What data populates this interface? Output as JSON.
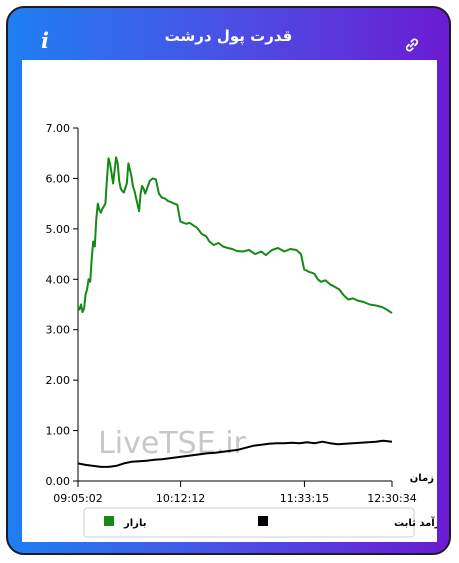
{
  "header": {
    "title": "قدرت پول درشت",
    "info_icon": "info-icon",
    "link_icon": "link-icon"
  },
  "chart_data": {
    "type": "line",
    "x_unit": "time",
    "xlabel": "زمان",
    "ylabel": "",
    "ylim": [
      0,
      7
    ],
    "yticks": [
      "0.00",
      "1.00",
      "2.00",
      "3.00",
      "4.00",
      "5.00",
      "6.00",
      "7.00"
    ],
    "xtick_labels": [
      "09:05:02",
      "10:12:12",
      "11:33:15",
      "12:30:34"
    ],
    "xtick_times": [
      "09:05:02",
      "10:12:12",
      "11:33:15",
      "12:30:34"
    ],
    "xlim": [
      "09:05:02",
      "12:30:34"
    ],
    "watermark": "LiveTSE.ir",
    "legend_position": "bottom",
    "series": [
      {
        "name": "بازار",
        "color": "#138a13",
        "x": [
          "09:05:02",
          "09:06:00",
          "09:07:00",
          "09:08:00",
          "09:09:00",
          "09:10:00",
          "09:11:00",
          "09:12:00",
          "09:13:00",
          "09:14:00",
          "09:15:00",
          "09:16:00",
          "09:17:00",
          "09:18:00",
          "09:19:00",
          "09:20:00",
          "09:21:00",
          "09:22:00",
          "09:23:00",
          "09:24:00",
          "09:25:00",
          "09:26:00",
          "09:27:00",
          "09:28:00",
          "09:30:00",
          "09:31:00",
          "09:32:00",
          "09:33:00",
          "09:34:00",
          "09:35:00",
          "09:37:00",
          "09:38:00",
          "09:40:00",
          "09:41:00",
          "09:42:00",
          "09:43:00",
          "09:45:00",
          "09:46:00",
          "09:47:00",
          "09:48:00",
          "09:49:00",
          "09:50:00",
          "09:52:00",
          "09:54:00",
          "09:56:00",
          "09:58:00",
          "10:00:00",
          "10:02:00",
          "10:04:00",
          "10:06:00",
          "10:08:00",
          "10:10:00",
          "10:12:00",
          "10:14:00",
          "10:16:00",
          "10:18:00",
          "10:20:00",
          "10:23:00",
          "10:26:00",
          "10:29:00",
          "10:31:00",
          "10:34:00",
          "10:37:00",
          "10:40:00",
          "10:43:00",
          "10:46:00",
          "10:49:00",
          "10:53:00",
          "10:57:00",
          "11:01:00",
          "11:05:00",
          "11:08:00",
          "11:12:00",
          "11:16:00",
          "11:20:00",
          "11:24:00",
          "11:28:00",
          "11:31:00",
          "11:33:00",
          "11:36:00",
          "11:39:00",
          "11:40:00",
          "11:42:00",
          "11:44:00",
          "11:47:00",
          "11:50:00",
          "11:53:00",
          "11:56:00",
          "11:58:00",
          "12:00:00",
          "12:02:00",
          "12:05:00",
          "12:08:00",
          "12:12:00",
          "12:16:00",
          "12:20:00",
          "12:24:00",
          "12:27:00",
          "12:30:34"
        ],
        "values": [
          3.45,
          3.4,
          3.5,
          3.35,
          3.42,
          3.7,
          3.8,
          4.0,
          3.95,
          4.4,
          4.75,
          4.65,
          5.2,
          5.5,
          5.38,
          5.32,
          5.4,
          5.45,
          5.5,
          6.0,
          6.4,
          6.3,
          6.1,
          5.9,
          6.42,
          6.3,
          5.95,
          5.8,
          5.75,
          5.72,
          5.9,
          6.3,
          6.05,
          5.85,
          5.75,
          5.62,
          5.35,
          5.7,
          5.85,
          5.8,
          5.7,
          5.78,
          5.95,
          6.0,
          5.98,
          5.7,
          5.62,
          5.6,
          5.55,
          5.53,
          5.5,
          5.48,
          5.15,
          5.12,
          5.1,
          5.12,
          5.08,
          5.02,
          4.9,
          4.85,
          4.75,
          4.68,
          4.72,
          4.65,
          4.62,
          4.6,
          4.56,
          4.55,
          4.58,
          4.5,
          4.55,
          4.48,
          4.58,
          4.62,
          4.55,
          4.6,
          4.58,
          4.5,
          4.2,
          4.15,
          4.12,
          4.1,
          4.0,
          3.95,
          3.98,
          3.9,
          3.85,
          3.8,
          3.72,
          3.65,
          3.6,
          3.62,
          3.58,
          3.55,
          3.5,
          3.48,
          3.45,
          3.4,
          3.33
        ]
      },
      {
        "name": "صندوق های درآمد ثابت",
        "color": "#000000",
        "x": [
          "09:05:02",
          "09:10:00",
          "09:15:00",
          "09:20:00",
          "09:25:00",
          "09:30:00",
          "09:35:00",
          "09:40:00",
          "09:45:00",
          "09:50:00",
          "09:55:00",
          "10:00:00",
          "10:05:00",
          "10:10:00",
          "10:15:00",
          "10:20:00",
          "10:25:00",
          "10:30:00",
          "10:35:00",
          "10:40:00",
          "10:45:00",
          "10:50:00",
          "10:55:00",
          "11:00:00",
          "11:05:00",
          "11:10:00",
          "11:15:00",
          "11:20:00",
          "11:25:00",
          "11:30:00",
          "11:35:00",
          "11:40:00",
          "11:45:00",
          "11:50:00",
          "11:55:00",
          "12:00:00",
          "12:05:00",
          "12:10:00",
          "12:15:00",
          "12:20:00",
          "12:25:00",
          "12:30:34"
        ],
        "values": [
          0.35,
          0.32,
          0.3,
          0.28,
          0.28,
          0.3,
          0.35,
          0.38,
          0.39,
          0.4,
          0.42,
          0.43,
          0.45,
          0.47,
          0.49,
          0.51,
          0.53,
          0.55,
          0.56,
          0.58,
          0.6,
          0.62,
          0.66,
          0.7,
          0.72,
          0.74,
          0.75,
          0.75,
          0.76,
          0.75,
          0.77,
          0.75,
          0.78,
          0.75,
          0.73,
          0.74,
          0.75,
          0.76,
          0.77,
          0.78,
          0.8,
          0.78
        ]
      }
    ]
  }
}
